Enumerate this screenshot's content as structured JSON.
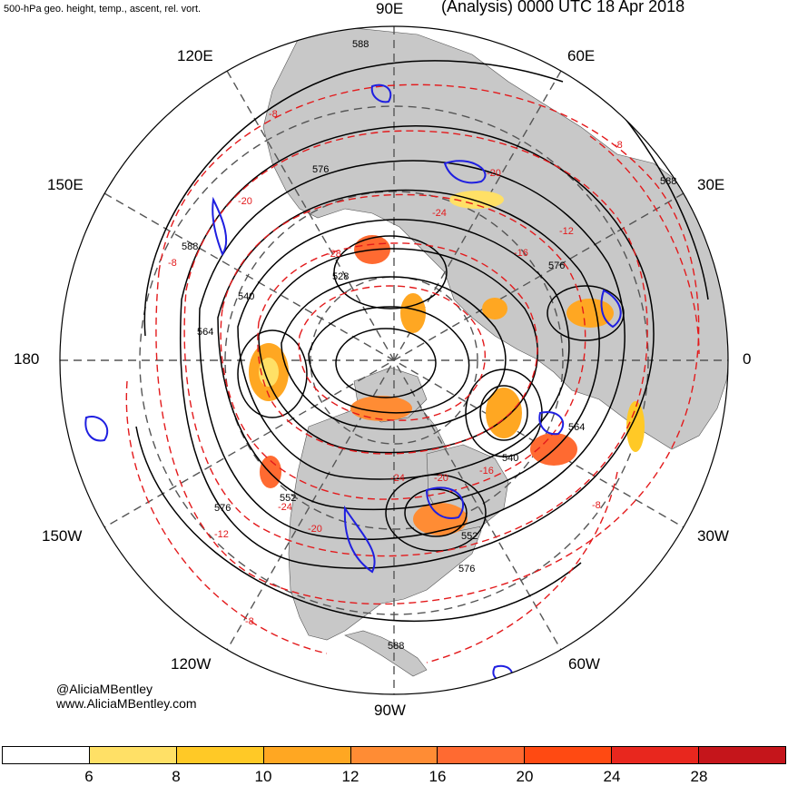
{
  "header": {
    "left_title": "500-hPa geo. height, temp., ascent, rel. vort.",
    "right_title": "(Analysis) 0000 UTC 18 Apr 2018"
  },
  "longitude_labels": {
    "e90": "90E",
    "e120": "120E",
    "e60": "60E",
    "e150": "150E",
    "e30": "30E",
    "w180": "180",
    "zero": "0",
    "w150": "150W",
    "w30": "30W",
    "w120": "120W",
    "w60": "60W",
    "w90": "90W"
  },
  "height_contour_labels": [
    "588",
    "576",
    "588",
    "528",
    "540",
    "564",
    "576",
    "552",
    "540",
    "564",
    "552",
    "576",
    "588",
    "576",
    "588"
  ],
  "temperature_contour_labels": [
    "-8",
    "-8",
    "-12",
    "-8",
    "-8",
    "-12",
    "-8",
    "-20",
    "-24",
    "-28",
    "-20",
    "-16",
    "-24",
    "-20",
    "-24",
    "-20",
    "-16"
  ],
  "credit": {
    "handle": "@AliciaMBentley",
    "site": "www.AliciaMBentley.com"
  },
  "colorbar": {
    "colors": [
      "#ffffff",
      "#ffe066",
      "#ffc926",
      "#ffa722",
      "#ff8c34",
      "#ff6a31",
      "#ff4a12",
      "#e8271e",
      "#c5151b"
    ],
    "ticks": [
      "6",
      "8",
      "10",
      "12",
      "16",
      "20",
      "24",
      "28"
    ]
  },
  "map_colors": {
    "land": "#c8c8c8",
    "height_contour": "#000000",
    "temperature_contour": "#e31a1c",
    "ascent": "#1f1fe0",
    "vorticity_light": "#ffe066",
    "vorticity_mid": "#ffa722",
    "vorticity_strong": "#e8271e"
  }
}
